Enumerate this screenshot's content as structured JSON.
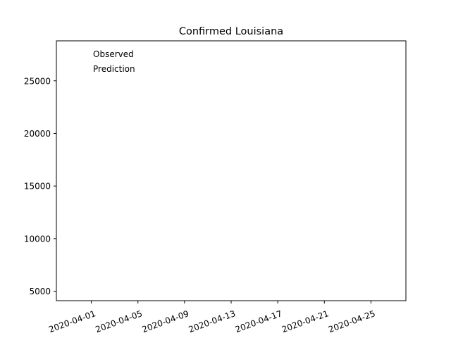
{
  "chart_data": {
    "type": "line",
    "title": "Confirmed Louisiana",
    "xlabel": "",
    "ylabel": "",
    "x_axis": {
      "scale": "date",
      "range": [
        "2020-03-29",
        "2020-04-28"
      ],
      "tick_labels": [
        "2020-04-01",
        "2020-04-05",
        "2020-04-09",
        "2020-04-13",
        "2020-04-17",
        "2020-04-21",
        "2020-04-25"
      ],
      "tick_rotation": 20
    },
    "y_axis": {
      "range": [
        4100,
        28800
      ],
      "ticks": [
        5000,
        10000,
        15000,
        20000,
        25000
      ],
      "tick_labels": [
        "5000",
        "10000",
        "15000",
        "20000",
        "25000"
      ]
    },
    "grid": false,
    "legend": {
      "position": "top-left",
      "entries": [
        "Observed",
        "Prediction"
      ]
    },
    "series": [
      {
        "name": "Observed",
        "x": [],
        "y": []
      },
      {
        "name": "Prediction",
        "x": [],
        "y": []
      }
    ]
  }
}
